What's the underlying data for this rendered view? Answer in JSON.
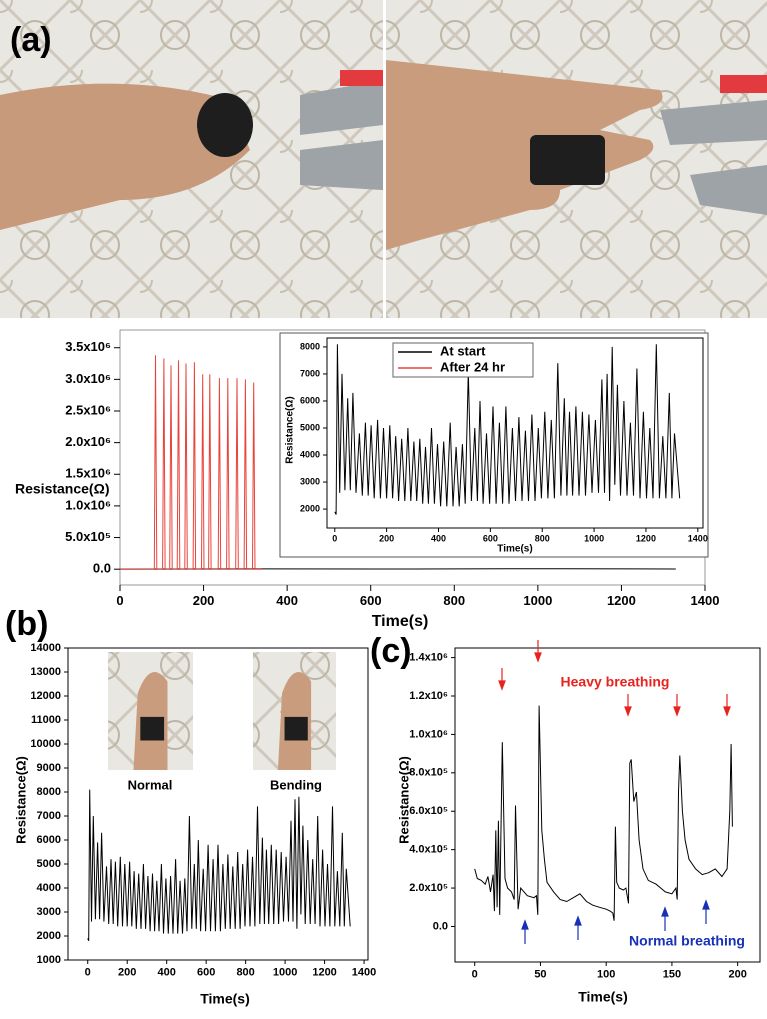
{
  "chart_data": [
    {
      "type": "line",
      "panel_label": "(a)",
      "xlabel": "Time(s)",
      "ylabel": "Resistance(Ω)",
      "xlim": [
        0,
        1400
      ],
      "ylim": [
        -250000,
        3780000
      ],
      "xticks": [
        0,
        200,
        400,
        600,
        800,
        1000,
        1200,
        1400
      ],
      "yticks": [
        {
          "value": 0,
          "label": "0.0"
        },
        {
          "value": 500000,
          "label": "5.0x10⁵"
        },
        {
          "value": 1000000,
          "label": "1.0x10⁶"
        },
        {
          "value": 1500000,
          "label": "1.5x10⁶"
        },
        {
          "value": 2000000,
          "label": "2.0x10⁶"
        },
        {
          "value": 2500000,
          "label": "2.5x10⁶"
        },
        {
          "value": 3000000,
          "label": "3.0x10⁶"
        },
        {
          "value": 3500000,
          "label": "3.5x10⁶"
        }
      ],
      "series": [
        {
          "name": "At start",
          "color": "#000000",
          "x": [
            0,
            340,
            700,
            1060,
            1330
          ],
          "values": [
            1900,
            4300,
            2300,
            8000,
            2400
          ]
        },
        {
          "name": "After 24 hr",
          "color": "#e8433a",
          "x": [
            0,
            82,
            85,
            88,
            102,
            105,
            108,
            119,
            122,
            125,
            137,
            140,
            143,
            155,
            158,
            161,
            175,
            178,
            181,
            195,
            198,
            201,
            212,
            215,
            218,
            235,
            238,
            241,
            255,
            258,
            261,
            277,
            280,
            283,
            297,
            300,
            303,
            317,
            320,
            323,
            340
          ],
          "values": [
            0,
            0,
            3380000,
            0,
            0,
            3330000,
            0,
            0,
            3220000,
            0,
            0,
            3300000,
            0,
            0,
            3250000,
            0,
            0,
            3270000,
            0,
            0,
            3080000,
            0,
            0,
            3080000,
            0,
            0,
            3020000,
            0,
            0,
            3020000,
            0,
            0,
            3020000,
            0,
            0,
            3000000,
            0,
            0,
            2950000,
            0,
            0
          ]
        }
      ]
    },
    {
      "type": "line",
      "xlabel": "Time(s)",
      "ylabel": "Resistance(Ω)",
      "xlim": [
        -30,
        1420
      ],
      "ylim": [
        1300,
        8330
      ],
      "xticks": [
        0,
        200,
        400,
        600,
        800,
        1000,
        1200,
        1400
      ],
      "yticks": [
        2000,
        3000,
        4000,
        5000,
        6000,
        7000,
        8000
      ],
      "color": "#000000",
      "x": [
        0,
        5,
        10,
        19,
        28,
        39,
        50,
        60,
        70,
        82,
        95,
        106,
        118,
        129,
        140,
        152,
        165,
        176,
        188,
        200,
        212,
        223,
        235,
        246,
        258,
        270,
        282,
        293,
        305,
        316,
        328,
        339,
        350,
        361,
        373,
        384,
        396,
        408,
        420,
        432,
        445,
        456,
        468,
        480,
        492,
        503,
        515,
        527,
        540,
        550,
        560,
        572,
        585,
        597,
        610,
        622,
        635,
        647,
        660,
        672,
        685,
        697,
        710,
        722,
        735,
        747,
        760,
        772,
        785,
        797,
        810,
        822,
        835,
        847,
        860,
        872,
        885,
        895,
        905,
        917,
        930,
        942,
        955,
        967,
        980,
        992,
        1005,
        1017,
        1030,
        1040,
        1050,
        1060,
        1070,
        1080,
        1090,
        1102,
        1115,
        1127,
        1140,
        1152,
        1165,
        1177,
        1190,
        1202,
        1215,
        1227,
        1240,
        1252,
        1265,
        1277,
        1290,
        1300,
        1310,
        1330
      ],
      "values": [
        1900,
        1800,
        8100,
        2600,
        7000,
        2700,
        6100,
        2700,
        6300,
        2600,
        4800,
        2500,
        5200,
        2500,
        5100,
        2400,
        5300,
        2400,
        5000,
        2400,
        5100,
        2400,
        4700,
        2300,
        4600,
        2300,
        5000,
        2300,
        4500,
        2300,
        4600,
        2200,
        4300,
        2200,
        5000,
        2200,
        4400,
        2100,
        4500,
        2100,
        5200,
        2100,
        4300,
        2100,
        4400,
        2200,
        7100,
        2300,
        5000,
        2300,
        6000,
        2200,
        4800,
        2200,
        5800,
        2200,
        5200,
        2200,
        5800,
        2200,
        5000,
        2300,
        5400,
        2300,
        4900,
        2300,
        5500,
        2300,
        5000,
        2400,
        5600,
        2400,
        5300,
        2400,
        7400,
        2500,
        6100,
        2500,
        5600,
        2500,
        5800,
        2500,
        5600,
        2500,
        5500,
        2600,
        5300,
        2600,
        6800,
        2600,
        7000,
        2300,
        8000,
        2900,
        6600,
        2500,
        6000,
        2500,
        5200,
        2500,
        7200,
        2400,
        5600,
        2400,
        5000,
        2400,
        8100,
        2400,
        4700,
        2400,
        6300,
        2400,
        4800,
        2400
      ]
    },
    {
      "type": "line",
      "panel_label": "(b)",
      "xlabel": "Time(s)",
      "ylabel": "Resistance(Ω)",
      "annotations": [
        "Normal",
        "Bending"
      ],
      "xlim": [
        -100,
        1420
      ],
      "ylim": [
        1000,
        14000
      ],
      "xticks": [
        0,
        200,
        400,
        600,
        800,
        1000,
        1200,
        1400
      ],
      "yticks": [
        1000,
        2000,
        3000,
        4000,
        5000,
        6000,
        7000,
        8000,
        9000,
        10000,
        11000,
        12000,
        13000,
        14000
      ],
      "color": "#000000",
      "x": [
        0,
        5,
        10,
        19,
        28,
        39,
        50,
        60,
        70,
        82,
        95,
        106,
        118,
        129,
        140,
        152,
        165,
        176,
        188,
        200,
        212,
        223,
        235,
        246,
        258,
        270,
        282,
        293,
        305,
        316,
        328,
        339,
        350,
        361,
        373,
        384,
        396,
        408,
        420,
        432,
        445,
        456,
        468,
        480,
        492,
        503,
        515,
        527,
        540,
        550,
        560,
        572,
        585,
        597,
        610,
        622,
        635,
        647,
        660,
        672,
        685,
        697,
        710,
        722,
        735,
        747,
        760,
        772,
        785,
        797,
        810,
        822,
        835,
        847,
        860,
        872,
        885,
        895,
        905,
        917,
        930,
        942,
        955,
        967,
        980,
        992,
        1005,
        1017,
        1030,
        1040,
        1050,
        1060,
        1070,
        1080,
        1090,
        1102,
        1115,
        1127,
        1140,
        1152,
        1165,
        1177,
        1190,
        1202,
        1215,
        1227,
        1240,
        1252,
        1265,
        1277,
        1290,
        1300,
        1310,
        1330
      ],
      "values": [
        1900,
        1800,
        8100,
        2600,
        7000,
        2700,
        5900,
        2700,
        6300,
        2600,
        4900,
        2500,
        5200,
        2500,
        5100,
        2400,
        5300,
        2400,
        5000,
        2400,
        5100,
        2400,
        4700,
        2300,
        4600,
        2300,
        5000,
        2300,
        4500,
        2200,
        4600,
        2200,
        4300,
        2200,
        5000,
        2100,
        4400,
        2100,
        4500,
        2100,
        5200,
        2100,
        4300,
        2100,
        4400,
        2200,
        7000,
        2300,
        5000,
        2300,
        6000,
        2200,
        4800,
        2200,
        5800,
        2200,
        5200,
        2200,
        5800,
        2200,
        5000,
        2300,
        5400,
        2300,
        4900,
        2300,
        5500,
        2300,
        5000,
        2400,
        5600,
        2400,
        5300,
        2400,
        7400,
        2500,
        6100,
        2500,
        5600,
        2500,
        5800,
        2500,
        5600,
        2500,
        5500,
        2600,
        5300,
        2600,
        6800,
        2600,
        7700,
        2300,
        7800,
        2900,
        6600,
        2500,
        6000,
        2500,
        5200,
        2500,
        7000,
        2400,
        5600,
        2400,
        5000,
        2400,
        7400,
        2400,
        4700,
        2400,
        6300,
        2400,
        4800,
        2400
      ]
    },
    {
      "type": "line",
      "panel_label": "(c)",
      "xlabel": "Time(s)",
      "ylabel": "Resistance(Ω)",
      "annotations": [
        "Heavy breathing",
        "Normal breathing"
      ],
      "xlim": [
        -15,
        217
      ],
      "ylim": [
        -185000,
        1450000
      ],
      "xticks": [
        0,
        50,
        100,
        150,
        200
      ],
      "yticks": [
        {
          "value": 0,
          "label": "0.0"
        },
        {
          "value": 200000,
          "label": "2.0x10⁵"
        },
        {
          "value": 400000,
          "label": "4.0x10⁵"
        },
        {
          "value": 600000,
          "label": "6.0x10⁵"
        },
        {
          "value": 800000,
          "label": "8.0x10⁵"
        },
        {
          "value": 1000000,
          "label": "1.0x10⁶"
        },
        {
          "value": 1200000,
          "label": "1.2x10⁶"
        },
        {
          "value": 1400000,
          "label": "1.4x10⁶"
        }
      ],
      "color": "#000000",
      "x": [
        0,
        2,
        5,
        8,
        10,
        12,
        14,
        15,
        16,
        17,
        18,
        19,
        21,
        23,
        25,
        28,
        30,
        31,
        33,
        35,
        40,
        45,
        47,
        48,
        49,
        51,
        53,
        55,
        60,
        65,
        70,
        75,
        80,
        85,
        90,
        95,
        100,
        103,
        105,
        106,
        107,
        108,
        110,
        113,
        115,
        117,
        118,
        119,
        121,
        123,
        125,
        128,
        132,
        138,
        145,
        150,
        153,
        154,
        155,
        156,
        158,
        160,
        163,
        168,
        173,
        178,
        183,
        188,
        192,
        194,
        195,
        196
      ],
      "values": [
        300000,
        250000,
        240000,
        220000,
        260000,
        180000,
        270000,
        80000,
        500000,
        100000,
        550000,
        60000,
        960000,
        250000,
        200000,
        180000,
        140000,
        630000,
        90000,
        200000,
        160000,
        150000,
        160000,
        60000,
        1150000,
        500000,
        350000,
        230000,
        180000,
        140000,
        130000,
        150000,
        170000,
        130000,
        110000,
        100000,
        90000,
        80000,
        70000,
        30000,
        520000,
        230000,
        200000,
        190000,
        200000,
        120000,
        850000,
        870000,
        650000,
        700000,
        450000,
        300000,
        240000,
        220000,
        180000,
        170000,
        200000,
        140000,
        700000,
        890000,
        600000,
        450000,
        350000,
        300000,
        270000,
        280000,
        300000,
        260000,
        300000,
        600000,
        950000,
        520000
      ]
    }
  ]
}
